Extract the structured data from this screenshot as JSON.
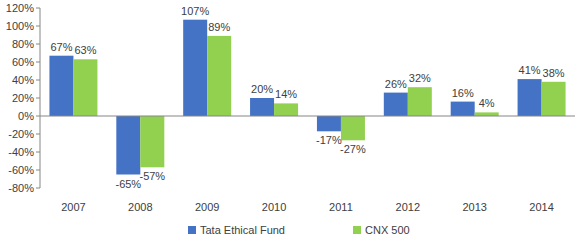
{
  "chart_data": {
    "type": "bar",
    "categories": [
      "2007",
      "2008",
      "2009",
      "2010",
      "2011",
      "2012",
      "2013",
      "2014"
    ],
    "series": [
      {
        "name": "Tata Ethical Fund",
        "color": "#4472c4",
        "values": [
          67,
          -65,
          107,
          20,
          -17,
          26,
          16,
          41
        ],
        "value_labels": [
          "67%",
          "-65%",
          "107%",
          "20%",
          "-17%",
          "26%",
          "16%",
          "41%"
        ]
      },
      {
        "name": "CNX 500",
        "color": "#92d050",
        "values": [
          63,
          -57,
          89,
          14,
          -27,
          32,
          4,
          38
        ],
        "value_labels": [
          "63%",
          "-57%",
          "89%",
          "14%",
          "-27%",
          "32%",
          "4%",
          "38%"
        ]
      }
    ],
    "ylim": [
      -80,
      120
    ],
    "yticks": [
      {
        "value": -80,
        "label": "-80%"
      },
      {
        "value": -60,
        "label": "-60%"
      },
      {
        "value": -40,
        "label": "-40%"
      },
      {
        "value": -20,
        "label": "-20%"
      },
      {
        "value": 0,
        "label": "0%"
      },
      {
        "value": 20,
        "label": "20%"
      },
      {
        "value": 40,
        "label": "40%"
      },
      {
        "value": 60,
        "label": "60%"
      },
      {
        "value": 80,
        "label": "80%"
      },
      {
        "value": 100,
        "label": "100%"
      },
      {
        "value": 120,
        "label": "120%"
      }
    ],
    "grid": false,
    "data_labels": true,
    "legend": "bottom"
  }
}
